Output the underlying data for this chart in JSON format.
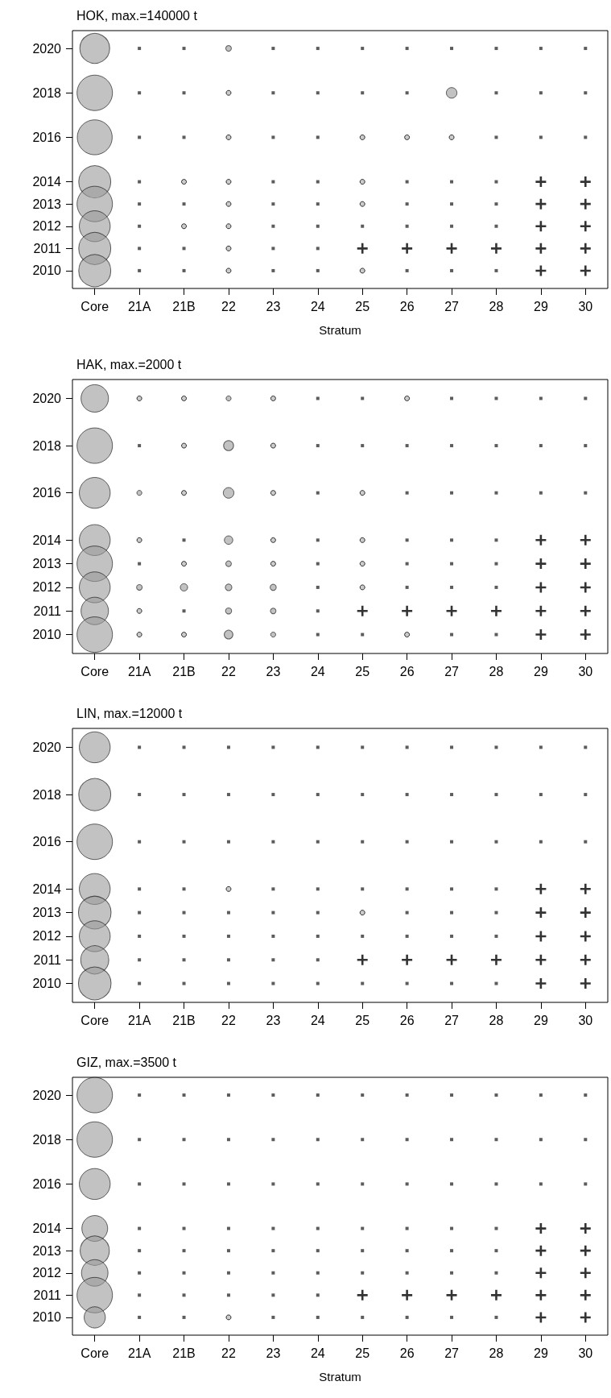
{
  "chart_data": [
    {
      "type": "bubble",
      "title": "HOK, max.=140000 t",
      "xlabel": "Stratum",
      "grid": false,
      "categories": [
        "Core",
        "21A",
        "21B",
        "22",
        "23",
        "24",
        "25",
        "26",
        "27",
        "28",
        "29",
        "30"
      ],
      "ylim": [
        2009.2,
        2020.8
      ],
      "yticks": [
        2010,
        2011,
        2012,
        2013,
        2014,
        2016,
        2018,
        2020
      ],
      "series": [
        {
          "color": "#999999",
          "x": [
            "Core",
            "22",
            "Core",
            "27",
            "Core",
            "Core",
            "Core",
            "Core",
            "Core",
            "Core"
          ],
          "values": [
            2020,
            2020,
            2018,
            2018,
            2016,
            2014,
            2013,
            2012,
            2011,
            2010
          ],
          "sizes": [
            0.71,
            0.025,
            1,
            0.09,
            0.97,
            0.82,
            1,
            0.76,
            0.82,
            0.82
          ]
        },
        {
          "type": "scatter",
          "marker": "circle",
          "color": "#bfbfbf",
          "x": [
            "22",
            "22",
            "25",
            "26",
            "27",
            "21B",
            "22",
            "25",
            "22",
            "25",
            "21B",
            "22",
            "22",
            "22",
            "25"
          ],
          "values": [
            2018,
            2016,
            2016,
            2016,
            2016,
            2014,
            2014,
            2014,
            2013,
            2013,
            2012,
            2012,
            2011,
            2010,
            2010
          ]
        },
        {
          "type": "scatter",
          "marker": "square",
          "color": "#333333",
          "x": [
            "21A",
            "21B",
            "23",
            "24",
            "25",
            "26",
            "27",
            "28",
            "29",
            "30",
            "21A",
            "21B",
            "23",
            "24",
            "25",
            "26",
            "28",
            "29",
            "30",
            "21A",
            "21B",
            "23",
            "24",
            "28",
            "29",
            "30",
            "21A",
            "23",
            "24",
            "26",
            "27",
            "28",
            "21A",
            "21B",
            "23",
            "24",
            "26",
            "27",
            "28",
            "21A",
            "23",
            "24",
            "25",
            "26",
            "27",
            "28",
            "21A",
            "21B",
            "23",
            "24",
            "21A",
            "21B",
            "23",
            "24",
            "26",
            "27",
            "28"
          ],
          "values": [
            2020,
            2020,
            2020,
            2020,
            2020,
            2020,
            2020,
            2020,
            2020,
            2020,
            2018,
            2018,
            2018,
            2018,
            2018,
            2018,
            2018,
            2018,
            2018,
            2016,
            2016,
            2016,
            2016,
            2016,
            2016,
            2016,
            2014,
            2014,
            2014,
            2014,
            2014,
            2014,
            2013,
            2013,
            2013,
            2013,
            2013,
            2013,
            2013,
            2012,
            2012,
            2012,
            2012,
            2012,
            2012,
            2012,
            2011,
            2011,
            2011,
            2011,
            2010,
            2010,
            2010,
            2010,
            2010,
            2010,
            2010
          ]
        },
        {
          "type": "scatter",
          "marker": "cross",
          "color": "#000000",
          "x": [
            "29",
            "30",
            "29",
            "30",
            "29",
            "30",
            "25",
            "26",
            "27",
            "28",
            "29",
            "30",
            "29",
            "30"
          ],
          "values": [
            2014,
            2014,
            2013,
            2013,
            2012,
            2012,
            2011,
            2011,
            2011,
            2011,
            2011,
            2011,
            2010,
            2010
          ]
        }
      ]
    },
    {
      "type": "bubble",
      "title": "HAK, max.=2000 t",
      "grid": false,
      "categories": [
        "Core",
        "21A",
        "21B",
        "22",
        "23",
        "24",
        "25",
        "26",
        "27",
        "28",
        "29",
        "30"
      ],
      "ylim": [
        2009.2,
        2020.8
      ],
      "yticks": [
        2010,
        2011,
        2012,
        2013,
        2014,
        2016,
        2018,
        2020
      ],
      "series": [
        {
          "color": "#999999",
          "x": [
            "Core",
            "22",
            "Core",
            "22",
            "Core",
            "21A",
            "22",
            "Core",
            "22",
            "Core",
            "22",
            "Core",
            "21A",
            "21B",
            "22",
            "23",
            "Core",
            "22",
            "23",
            "Core",
            "22",
            "23"
          ],
          "values": [
            2020,
            2020,
            2018,
            2018,
            2016,
            2016,
            2016,
            2014,
            2014,
            2013,
            2013,
            2012,
            2012,
            2012,
            2012,
            2012,
            2011,
            2011,
            2011,
            2010,
            2010,
            2010
          ],
          "sizes": [
            0.6,
            0.02,
            1,
            0.08,
            0.76,
            0.02,
            0.09,
            0.76,
            0.057,
            1,
            0.025,
            0.76,
            0.025,
            0.043,
            0.035,
            0.03,
            0.6,
            0.03,
            0.025,
            1,
            0.06,
            0.02
          ]
        },
        {
          "type": "scatter",
          "marker": "circle",
          "color": "#bfbfbf",
          "x": [
            "21A",
            "21B",
            "23",
            "26",
            "21B",
            "23",
            "21B",
            "23",
            "25",
            "21A",
            "23",
            "25",
            "21B",
            "23",
            "25",
            "25",
            "21A",
            "21A",
            "21B",
            "26"
          ],
          "values": [
            2020,
            2020,
            2020,
            2020,
            2018,
            2018,
            2016,
            2016,
            2016,
            2014,
            2014,
            2014,
            2013,
            2013,
            2013,
            2012,
            2011,
            2010,
            2010,
            2010
          ]
        },
        {
          "type": "scatter",
          "marker": "square",
          "color": "#333333",
          "x": [
            "24",
            "25",
            "27",
            "28",
            "29",
            "30",
            "21A",
            "24",
            "25",
            "26",
            "27",
            "28",
            "29",
            "30",
            "24",
            "26",
            "27",
            "28",
            "29",
            "30",
            "21B",
            "24",
            "26",
            "27",
            "28",
            "21A",
            "24",
            "26",
            "27",
            "28",
            "24",
            "26",
            "27",
            "28",
            "21B",
            "24",
            "24",
            "25",
            "27",
            "28"
          ],
          "values": [
            2020,
            2020,
            2020,
            2020,
            2020,
            2020,
            2018,
            2018,
            2018,
            2018,
            2018,
            2018,
            2018,
            2018,
            2016,
            2016,
            2016,
            2016,
            2016,
            2016,
            2014,
            2014,
            2014,
            2014,
            2014,
            2013,
            2013,
            2013,
            2013,
            2013,
            2012,
            2012,
            2012,
            2012,
            2011,
            2011,
            2010,
            2010,
            2010,
            2010
          ]
        },
        {
          "type": "scatter",
          "marker": "cross",
          "color": "#000000",
          "x": [
            "29",
            "30",
            "29",
            "30",
            "29",
            "30",
            "25",
            "26",
            "27",
            "28",
            "29",
            "30",
            "29",
            "30"
          ],
          "values": [
            2014,
            2014,
            2013,
            2013,
            2012,
            2012,
            2011,
            2011,
            2011,
            2011,
            2011,
            2011,
            2010,
            2010
          ]
        }
      ]
    },
    {
      "type": "bubble",
      "title": "LIN, max.=12000 t",
      "grid": false,
      "categories": [
        "Core",
        "21A",
        "21B",
        "22",
        "23",
        "24",
        "25",
        "26",
        "27",
        "28",
        "29",
        "30"
      ],
      "ylim": [
        2009.2,
        2020.8
      ],
      "yticks": [
        2010,
        2011,
        2012,
        2013,
        2014,
        2016,
        2018,
        2020
      ],
      "series": [
        {
          "color": "#999999",
          "x": [
            "Core",
            "Core",
            "Core",
            "Core",
            "Core",
            "Core",
            "Core",
            "Core"
          ],
          "values": [
            2020,
            2018,
            2016,
            2014,
            2013,
            2012,
            2011,
            2010
          ],
          "sizes": [
            0.76,
            0.82,
            1,
            0.76,
            0.85,
            0.76,
            0.63,
            0.85
          ]
        },
        {
          "type": "scatter",
          "marker": "circle",
          "color": "#bfbfbf",
          "x": [
            "22",
            "25"
          ],
          "values": [
            2014,
            2013
          ]
        },
        {
          "type": "scatter",
          "marker": "square",
          "color": "#333333",
          "x": [
            "21A",
            "21B",
            "22",
            "23",
            "24",
            "25",
            "26",
            "27",
            "28",
            "29",
            "30",
            "21A",
            "21B",
            "22",
            "23",
            "24",
            "25",
            "26",
            "27",
            "28",
            "29",
            "30",
            "21A",
            "21B",
            "22",
            "23",
            "24",
            "25",
            "26",
            "27",
            "28",
            "29",
            "30",
            "21A",
            "21B",
            "23",
            "24",
            "25",
            "26",
            "27",
            "28",
            "21A",
            "21B",
            "22",
            "23",
            "24",
            "26",
            "27",
            "28",
            "21A",
            "21B",
            "22",
            "23",
            "24",
            "25",
            "26",
            "27",
            "28",
            "21A",
            "21B",
            "22",
            "23",
            "24",
            "21A",
            "21B",
            "22",
            "23",
            "24",
            "25",
            "26",
            "27",
            "28"
          ],
          "values": [
            2020,
            2020,
            2020,
            2020,
            2020,
            2020,
            2020,
            2020,
            2020,
            2020,
            2020,
            2018,
            2018,
            2018,
            2018,
            2018,
            2018,
            2018,
            2018,
            2018,
            2018,
            2018,
            2016,
            2016,
            2016,
            2016,
            2016,
            2016,
            2016,
            2016,
            2016,
            2016,
            2016,
            2014,
            2014,
            2014,
            2014,
            2014,
            2014,
            2014,
            2014,
            2013,
            2013,
            2013,
            2013,
            2013,
            2013,
            2013,
            2013,
            2012,
            2012,
            2012,
            2012,
            2012,
            2012,
            2012,
            2012,
            2012,
            2011,
            2011,
            2011,
            2011,
            2011,
            2010,
            2010,
            2010,
            2010,
            2010,
            2010,
            2010,
            2010,
            2010
          ]
        },
        {
          "type": "scatter",
          "marker": "cross",
          "color": "#000000",
          "x": [
            "29",
            "30",
            "29",
            "30",
            "29",
            "30",
            "25",
            "26",
            "27",
            "28",
            "29",
            "30",
            "29",
            "30"
          ],
          "values": [
            2014,
            2014,
            2013,
            2013,
            2012,
            2012,
            2011,
            2011,
            2011,
            2011,
            2011,
            2011,
            2010,
            2010
          ]
        }
      ]
    },
    {
      "type": "bubble",
      "title": "GIZ, max.=3500 t",
      "xlabel": "Stratum",
      "grid": false,
      "categories": [
        "Core",
        "21A",
        "21B",
        "22",
        "23",
        "24",
        "25",
        "26",
        "27",
        "28",
        "29",
        "30"
      ],
      "ylim": [
        2009.2,
        2020.8
      ],
      "yticks": [
        2010,
        2011,
        2012,
        2013,
        2014,
        2016,
        2018,
        2020
      ],
      "series": [
        {
          "color": "#999999",
          "x": [
            "Core",
            "Core",
            "Core",
            "Core",
            "Core",
            "Core",
            "Core",
            "Core"
          ],
          "values": [
            2020,
            2018,
            2016,
            2014,
            2013,
            2012,
            2011,
            2010
          ],
          "sizes": [
            1,
            1,
            0.76,
            0.53,
            0.68,
            0.56,
            1,
            0.36
          ]
        },
        {
          "type": "scatter",
          "marker": "circle",
          "color": "#bfbfbf",
          "x": [
            "22"
          ],
          "values": [
            2010
          ]
        },
        {
          "type": "scatter",
          "marker": "square",
          "color": "#333333",
          "x": [
            "21A",
            "21B",
            "22",
            "23",
            "24",
            "25",
            "26",
            "27",
            "28",
            "29",
            "30",
            "21A",
            "21B",
            "22",
            "23",
            "24",
            "25",
            "26",
            "27",
            "28",
            "29",
            "30",
            "21A",
            "21B",
            "22",
            "23",
            "24",
            "25",
            "26",
            "27",
            "28",
            "29",
            "30",
            "21A",
            "21B",
            "22",
            "23",
            "24",
            "25",
            "26",
            "27",
            "28",
            "21A",
            "21B",
            "22",
            "23",
            "24",
            "25",
            "26",
            "27",
            "28",
            "21A",
            "21B",
            "22",
            "23",
            "24",
            "25",
            "26",
            "27",
            "28",
            "21A",
            "21B",
            "22",
            "23",
            "24",
            "21A",
            "21B",
            "23",
            "24",
            "25",
            "26",
            "27",
            "28"
          ],
          "values": [
            2020,
            2020,
            2020,
            2020,
            2020,
            2020,
            2020,
            2020,
            2020,
            2020,
            2020,
            2018,
            2018,
            2018,
            2018,
            2018,
            2018,
            2018,
            2018,
            2018,
            2018,
            2018,
            2016,
            2016,
            2016,
            2016,
            2016,
            2016,
            2016,
            2016,
            2016,
            2016,
            2016,
            2014,
            2014,
            2014,
            2014,
            2014,
            2014,
            2014,
            2014,
            2014,
            2013,
            2013,
            2013,
            2013,
            2013,
            2013,
            2013,
            2013,
            2013,
            2012,
            2012,
            2012,
            2012,
            2012,
            2012,
            2012,
            2012,
            2012,
            2011,
            2011,
            2011,
            2011,
            2011,
            2010,
            2010,
            2010,
            2010,
            2010,
            2010,
            2010,
            2010
          ]
        },
        {
          "type": "scatter",
          "marker": "cross",
          "color": "#000000",
          "x": [
            "29",
            "30",
            "29",
            "30",
            "29",
            "30",
            "25",
            "26",
            "27",
            "28",
            "29",
            "30",
            "29",
            "30"
          ],
          "values": [
            2014,
            2014,
            2013,
            2013,
            2012,
            2012,
            2011,
            2011,
            2011,
            2011,
            2011,
            2011,
            2010,
            2010
          ]
        }
      ]
    }
  ]
}
